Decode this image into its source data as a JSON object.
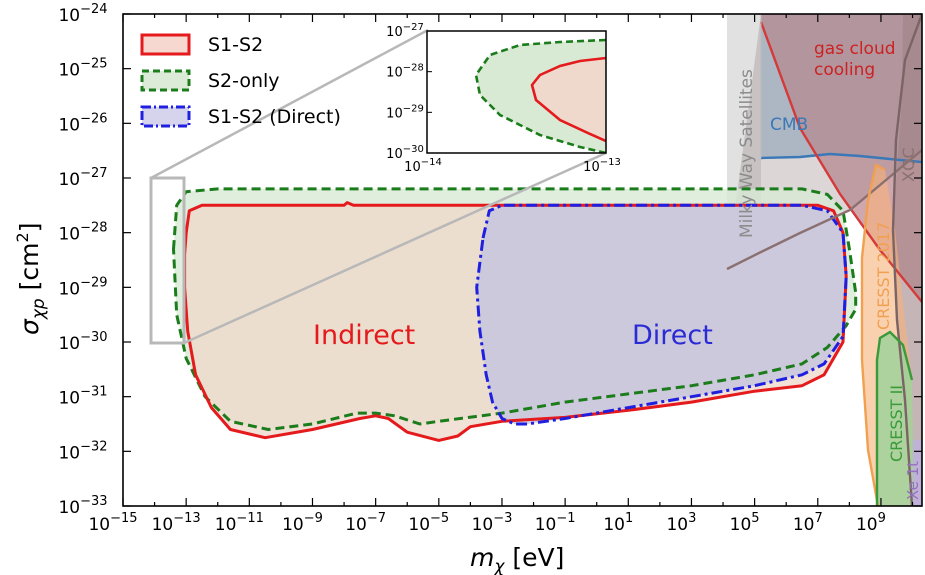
{
  "chart_data": {
    "type": "area",
    "xlabel_base": "m",
    "xlabel_sub": "χ",
    "xlabel_unit": " [eV]",
    "ylabel_base": "σ",
    "ylabel_sub": "χp",
    "ylabel_unit": " [cm",
    "ylabel_sup": "2",
    "ylabel_close": "]",
    "x_log_range": [
      -15,
      10.3
    ],
    "y_log_range": [
      -33,
      -24
    ],
    "x_scale": "log",
    "y_scale": "log",
    "x_tick_exponents": [
      -15,
      -13,
      -11,
      -9,
      -7,
      -5,
      -3,
      -1,
      1,
      3,
      5,
      7,
      9
    ],
    "y_tick_exponents": [
      -33,
      -32,
      -31,
      -30,
      -29,
      -28,
      -27,
      -26,
      -25,
      -24
    ],
    "tick_base": "10",
    "legend_position": "top-left",
    "series": [
      {
        "name": "S1-S2",
        "color": "#e41a1c",
        "fill": "#efd9cc",
        "style": "solid",
        "boundary_log": [
          [
            -13.0,
            -28.0
          ],
          [
            -12.9,
            -27.6
          ],
          [
            -12.5,
            -27.5
          ],
          [
            -10,
            -27.5
          ],
          [
            -8,
            -27.5
          ],
          [
            -7.9,
            -27.45
          ],
          [
            -7.7,
            -27.5
          ],
          [
            -5,
            -27.5
          ],
          [
            -2,
            -27.5
          ],
          [
            1,
            -27.5
          ],
          [
            4,
            -27.5
          ],
          [
            7,
            -27.5
          ],
          [
            7.5,
            -27.6
          ],
          [
            7.8,
            -28.0
          ],
          [
            7.9,
            -28.8
          ],
          [
            7.8,
            -30.0
          ],
          [
            7.2,
            -30.6
          ],
          [
            6.5,
            -30.8
          ],
          [
            5,
            -30.9
          ],
          [
            3,
            -31.1
          ],
          [
            1,
            -31.25
          ],
          [
            -1,
            -31.38
          ],
          [
            -3,
            -31.45
          ],
          [
            -4,
            -31.55
          ],
          [
            -4.4,
            -31.72
          ],
          [
            -5,
            -31.8
          ],
          [
            -6,
            -31.65
          ],
          [
            -6.6,
            -31.4
          ],
          [
            -7,
            -31.35
          ],
          [
            -7.5,
            -31.4
          ],
          [
            -9,
            -31.6
          ],
          [
            -10.5,
            -31.75
          ],
          [
            -11.6,
            -31.6
          ],
          [
            -12.2,
            -31.2
          ],
          [
            -12.7,
            -30.6
          ],
          [
            -12.95,
            -29.8
          ],
          [
            -13.05,
            -29.0
          ],
          [
            -13.05,
            -28.4
          ]
        ]
      },
      {
        "name": "S2-only",
        "color": "#1b7c1b",
        "fill": "#d8ead4",
        "style": "dashed",
        "boundary_log": [
          [
            -13.4,
            -28.3
          ],
          [
            -13.3,
            -27.5
          ],
          [
            -13.0,
            -27.25
          ],
          [
            -12.0,
            -27.2
          ],
          [
            -8,
            -27.2
          ],
          [
            -4,
            -27.2
          ],
          [
            0,
            -27.2
          ],
          [
            4,
            -27.2
          ],
          [
            6.5,
            -27.2
          ],
          [
            7.3,
            -27.3
          ],
          [
            7.8,
            -27.6
          ],
          [
            8.0,
            -28.3
          ],
          [
            8.2,
            -29.1
          ],
          [
            8.2,
            -29.4
          ],
          [
            7.9,
            -29.7
          ],
          [
            7.3,
            -30.1
          ],
          [
            6.5,
            -30.4
          ],
          [
            5,
            -30.6
          ],
          [
            3,
            -30.8
          ],
          [
            1,
            -30.95
          ],
          [
            -1,
            -31.1
          ],
          [
            -3,
            -31.3
          ],
          [
            -5,
            -31.45
          ],
          [
            -5.6,
            -31.5
          ],
          [
            -6.4,
            -31.35
          ],
          [
            -7.0,
            -31.3
          ],
          [
            -7.6,
            -31.3
          ],
          [
            -9,
            -31.5
          ],
          [
            -10.4,
            -31.6
          ],
          [
            -11.6,
            -31.45
          ],
          [
            -12.4,
            -31.0
          ],
          [
            -13.0,
            -30.3
          ],
          [
            -13.3,
            -29.5
          ]
        ]
      },
      {
        "name": "S1-S2 (Direct)",
        "color": "#1f1fe0",
        "fill": "#c8c6de",
        "style": "dashdot",
        "boundary_log": [
          [
            -3.6,
            -28.1
          ],
          [
            -3.4,
            -27.6
          ],
          [
            -3.0,
            -27.5
          ],
          [
            0,
            -27.5
          ],
          [
            3,
            -27.5
          ],
          [
            6.5,
            -27.5
          ],
          [
            7.3,
            -27.6
          ],
          [
            7.8,
            -28.0
          ],
          [
            7.9,
            -28.8
          ],
          [
            7.8,
            -29.9
          ],
          [
            7.2,
            -30.4
          ],
          [
            6.5,
            -30.6
          ],
          [
            5,
            -30.8
          ],
          [
            3,
            -31.0
          ],
          [
            1,
            -31.2
          ],
          [
            -1,
            -31.4
          ],
          [
            -2.2,
            -31.5
          ],
          [
            -2.6,
            -31.5
          ],
          [
            -3.0,
            -31.4
          ],
          [
            -3.3,
            -31.1
          ],
          [
            -3.5,
            -30.6
          ],
          [
            -3.7,
            -29.8
          ],
          [
            -3.8,
            -29.0
          ]
        ]
      }
    ],
    "annotations": {
      "indirect_label": "Indirect",
      "indirect_color": "#e41a1c",
      "direct_label": "Direct",
      "direct_color": "#2b2bd6"
    },
    "constraints": [
      {
        "name": "Milky Way Satellites",
        "color": "#8c8c8c",
        "fill": "#dcdcdc"
      },
      {
        "name": "CMB",
        "color": "#3b78b8",
        "fill": "#9bbfd8"
      },
      {
        "name": "gas cloud\ncooling",
        "color": "#d43a3a",
        "fill": "#c58f95"
      },
      {
        "name": "CRESST 2017",
        "color": "#f0a050",
        "fill": "#f8c8a0"
      },
      {
        "name": "XQC",
        "color": "#8a7070",
        "fill": "#b89fa0"
      },
      {
        "name": "CRESST II",
        "color": "#3a9a3a",
        "fill": "#a8d8a0"
      },
      {
        "name": "Xe 1t",
        "color": "#9370c0",
        "fill": "#c8b8e0"
      }
    ],
    "constraint_labels": {
      "mws": "Milky Way Satellites",
      "cmb": "CMB",
      "gas_line1": "gas cloud",
      "gas_line2": "cooling",
      "cresst2017": "CRESST 2017",
      "xqc": "XQC",
      "cresst2": "CRESST II",
      "xe1t": "Xe 1t"
    },
    "inset": {
      "x_log_range": [
        -14,
        -13
      ],
      "y_log_range": [
        -30,
        -27
      ],
      "x_tick_exponents": [
        -14,
        -13
      ],
      "y_tick_exponents": [
        -30,
        -29,
        -28,
        -27
      ]
    }
  }
}
